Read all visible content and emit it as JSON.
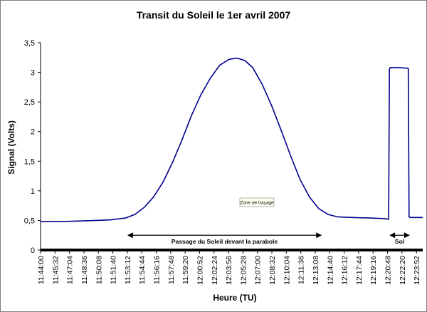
{
  "chart_data": {
    "type": "line",
    "title": "Transit du Soleil le 1er avril 2007",
    "xlabel": "Heure (TU)",
    "ylabel": "Signal (Volts)",
    "ylim": [
      0,
      3.5
    ],
    "yticks": [
      0,
      0.5,
      1,
      1.5,
      2,
      2.5,
      3,
      3.5
    ],
    "ytick_labels": [
      "0",
      "0,5",
      "1",
      "1,5",
      "2",
      "2,5",
      "3",
      "3,5"
    ],
    "xlim": [
      "11:44:00",
      "12:24:32"
    ],
    "xtick_labels": [
      "11:44:00",
      "11:45:32",
      "11:47:04",
      "11:48:36",
      "11:50:08",
      "11:51:40",
      "11:53:12",
      "11:54:44",
      "11:56:16",
      "11:57:48",
      "11:59:20",
      "12:00:52",
      "12:02:24",
      "12:03:56",
      "12:05:28",
      "12:07:00",
      "12:08:32",
      "12:10:04",
      "12:11:36",
      "12:13:08",
      "12:14:40",
      "12:16:12",
      "12:17:44",
      "12:19:16",
      "12:20:48",
      "12:22:20",
      "12:23:52"
    ],
    "grid": false,
    "legend": "none",
    "colors": {
      "series": "#00008b",
      "frame": "#808080",
      "axis": "#000000"
    },
    "series": [
      {
        "x": [
          "11:44:00",
          "11:46:00",
          "11:48:00",
          "11:50:00",
          "11:51:30",
          "11:53:00",
          "11:54:00",
          "11:55:00",
          "11:56:00",
          "11:57:00",
          "11:58:00",
          "11:59:00",
          "12:00:00",
          "12:01:00",
          "12:02:00",
          "12:03:00",
          "12:04:00",
          "12:04:50",
          "12:05:40",
          "12:06:30",
          "12:07:30",
          "12:08:30",
          "12:09:30",
          "12:10:30",
          "12:11:30",
          "12:12:30",
          "12:13:30",
          "12:14:30",
          "12:15:30",
          "12:17:00",
          "12:19:00",
          "12:20:30",
          "12:20:55",
          "12:21:00",
          "12:21:05",
          "12:22:00",
          "12:23:00",
          "12:23:05",
          "12:23:10",
          "12:24:00",
          "12:24:32"
        ],
        "y": [
          0.48,
          0.48,
          0.49,
          0.5,
          0.51,
          0.54,
          0.6,
          0.72,
          0.9,
          1.15,
          1.48,
          1.86,
          2.27,
          2.62,
          2.9,
          3.12,
          3.22,
          3.24,
          3.2,
          3.08,
          2.8,
          2.44,
          2.03,
          1.6,
          1.2,
          0.9,
          0.7,
          0.6,
          0.56,
          0.55,
          0.54,
          0.53,
          0.52,
          3.05,
          3.08,
          3.08,
          3.07,
          0.56,
          0.55,
          0.55,
          0.55
        ]
      }
    ],
    "annotations": [
      {
        "text": "Passage du Soleil devant la parabole",
        "from": "11:53:12",
        "to": "12:13:50",
        "y": 0.25
      },
      {
        "text": "Sol",
        "from": "12:21:00",
        "to": "12:23:10",
        "y": 0.25
      }
    ],
    "tooltip": "Zone de traçage"
  }
}
